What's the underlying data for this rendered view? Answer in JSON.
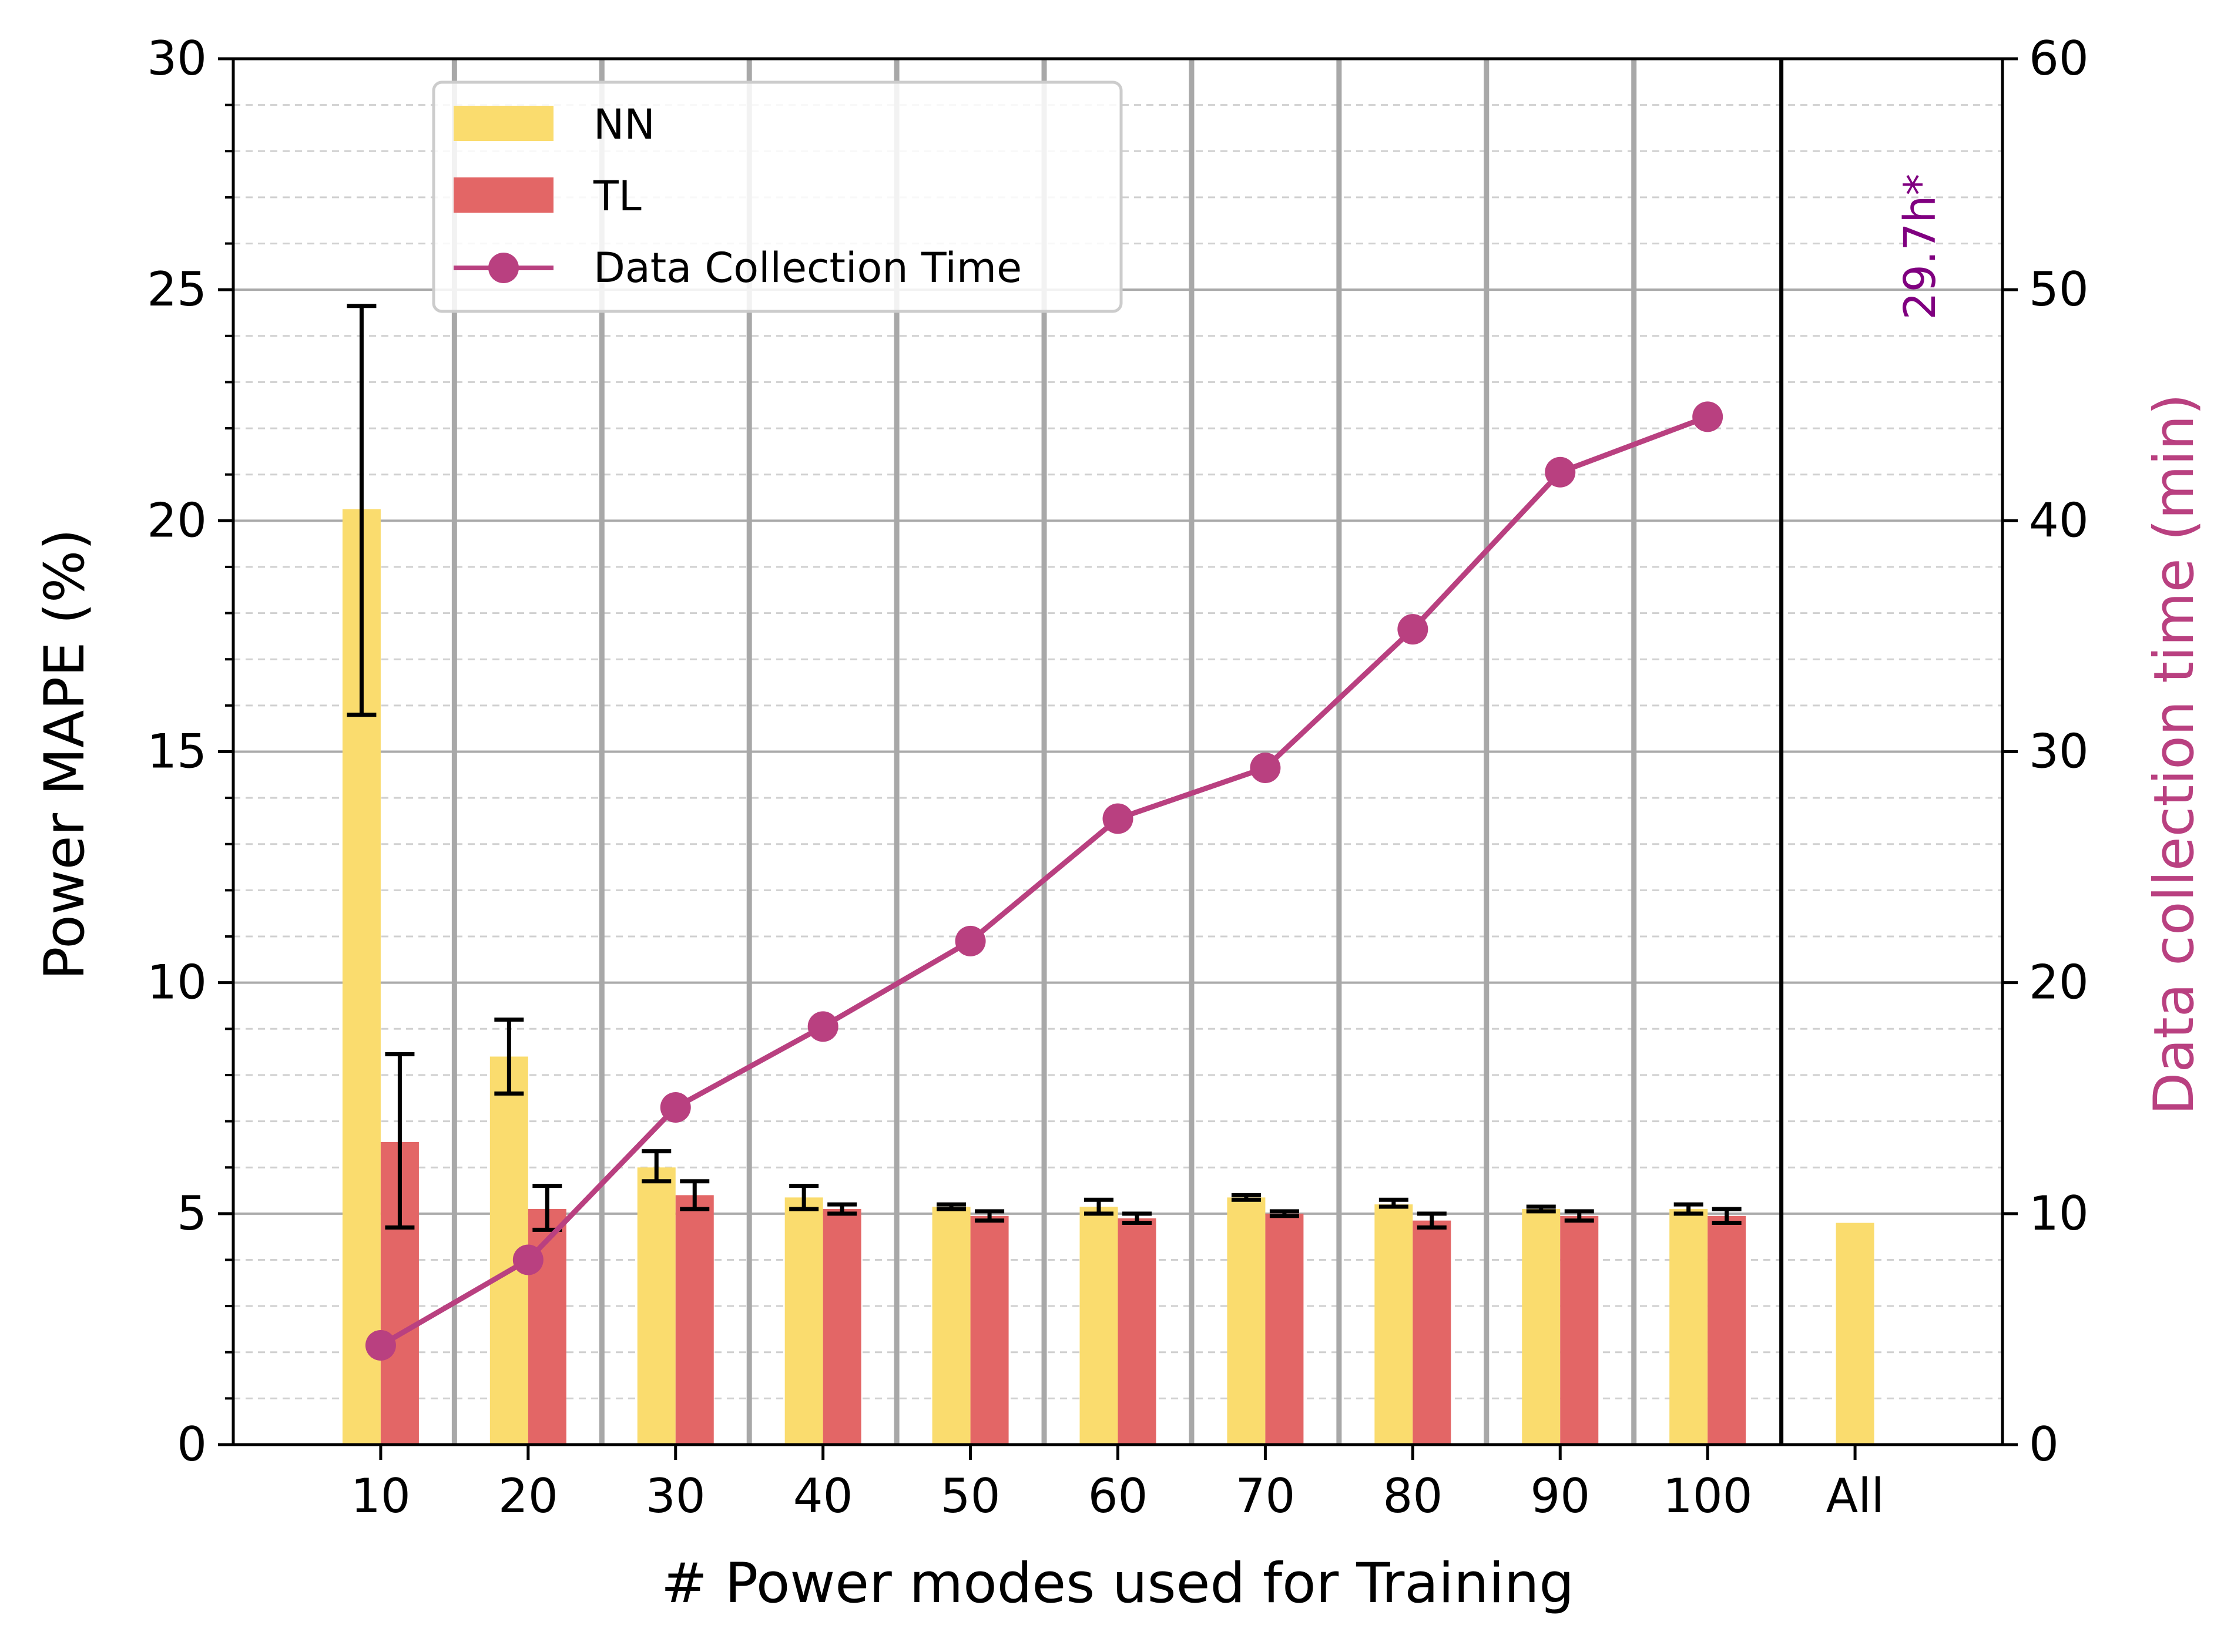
{
  "chart_data": {
    "type": "bar",
    "xlabel": "# Power modes used for Training",
    "ylabel": "Power MAPE (%)",
    "ylabel_right": "Data collection time (min)",
    "ylim": [
      0,
      30
    ],
    "ylim_right": [
      0,
      60
    ],
    "yticks": [
      0,
      5,
      10,
      15,
      20,
      25,
      30
    ],
    "yticks_right": [
      0,
      10,
      20,
      30,
      40,
      50,
      60
    ],
    "categories": [
      "10",
      "20",
      "30",
      "40",
      "50",
      "60",
      "70",
      "80",
      "90",
      "100",
      "All"
    ],
    "series": [
      {
        "name": "NN",
        "type": "bar",
        "color": "#FADC6E",
        "values": [
          20.25,
          8.4,
          6.0,
          5.35,
          5.15,
          5.15,
          5.35,
          5.2,
          5.1,
          5.1,
          4.8
        ],
        "error_low": [
          15.8,
          7.6,
          5.7,
          5.1,
          5.1,
          5.0,
          5.3,
          5.15,
          5.05,
          5.0,
          null
        ],
        "error_high": [
          24.65,
          9.2,
          6.35,
          5.6,
          5.2,
          5.3,
          5.4,
          5.3,
          5.15,
          5.2,
          null
        ]
      },
      {
        "name": "TL",
        "type": "bar",
        "color": "#E36666",
        "values": [
          6.55,
          5.1,
          5.4,
          5.1,
          4.95,
          4.9,
          5.0,
          4.85,
          4.95,
          4.95,
          null
        ],
        "error_low": [
          4.7,
          4.65,
          5.1,
          5.0,
          4.85,
          4.8,
          4.95,
          4.7,
          4.85,
          4.8,
          null
        ],
        "error_high": [
          8.45,
          5.6,
          5.7,
          5.2,
          5.05,
          5.0,
          5.05,
          5.0,
          5.05,
          5.1,
          null
        ]
      },
      {
        "name": "Data Collection Time",
        "type": "line",
        "axis": "right",
        "color": "#B94080",
        "x": [
          "10",
          "20",
          "30",
          "40",
          "50",
          "60",
          "70",
          "80",
          "90",
          "100"
        ],
        "values": [
          4.3,
          8.0,
          14.6,
          18.1,
          21.8,
          27.1,
          29.3,
          35.3,
          42.1,
          44.5
        ]
      }
    ],
    "annotation": {
      "text": "29.7h*",
      "color": "#800080"
    },
    "legend": {
      "position": "top-left"
    },
    "grid": true
  }
}
